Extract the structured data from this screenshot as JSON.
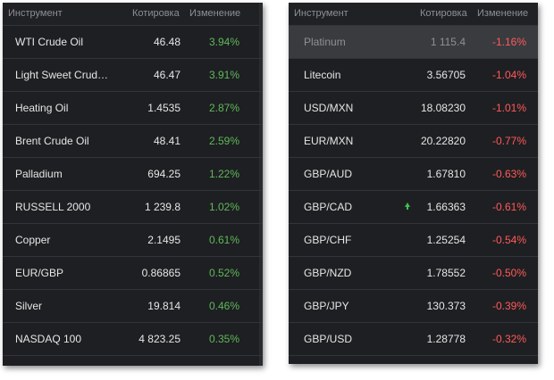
{
  "left_panel": {
    "header": {
      "instrument": "Инструмент",
      "quote": "Котировка",
      "change": "Изменение"
    },
    "rows": [
      {
        "name": "WTI Crude Oil",
        "price": "46.48",
        "change": "3.94%"
      },
      {
        "name": "Light Sweet Crud…",
        "price": "46.47",
        "change": "3.91%"
      },
      {
        "name": "Heating Oil",
        "price": "1.4535",
        "change": "2.87%"
      },
      {
        "name": "Brent Crude Oil",
        "price": "48.41",
        "change": "2.59%"
      },
      {
        "name": "Palladium",
        "price": "694.25",
        "change": "1.22%"
      },
      {
        "name": "RUSSELL 2000",
        "price": "1 239.8",
        "change": "1.02%"
      },
      {
        "name": "Copper",
        "price": "2.1495",
        "change": "0.61%"
      },
      {
        "name": "EUR/GBP",
        "price": "0.86865",
        "change": "0.52%"
      },
      {
        "name": "Silver",
        "price": "19.814",
        "change": "0.46%"
      },
      {
        "name": "NASDAQ 100",
        "price": "4 823.25",
        "change": "0.35%"
      }
    ]
  },
  "right_panel": {
    "header": {
      "instrument": "Инструмент",
      "quote": "Котировка",
      "change": "Изменение"
    },
    "rows": [
      {
        "name": "Platinum",
        "price": "1 115.4",
        "change": "-1.16%"
      },
      {
        "name": "Litecoin",
        "price": "3.56705",
        "change": "-1.04%"
      },
      {
        "name": "USD/MXN",
        "price": "18.08230",
        "change": "-1.01%"
      },
      {
        "name": "EUR/MXN",
        "price": "20.22820",
        "change": "-0.77%"
      },
      {
        "name": "GBP/AUD",
        "price": "1.67810",
        "change": "-0.63%"
      },
      {
        "name": "GBP/CAD",
        "price": "1.66363",
        "change": "-0.61%"
      },
      {
        "name": "GBP/CHF",
        "price": "1.25254",
        "change": "-0.54%"
      },
      {
        "name": "GBP/NZD",
        "price": "1.78552",
        "change": "-0.50%"
      },
      {
        "name": "GBP/JPY",
        "price": "130.373",
        "change": "-0.39%"
      },
      {
        "name": "GBP/USD",
        "price": "1.28778",
        "change": "-0.32%"
      }
    ]
  },
  "colors": {
    "panel_bg": "#1e1f22",
    "positive": "#5fb85b",
    "negative": "#ff5a5a",
    "tick_up": "#3cc04f"
  },
  "icons": {
    "tick_indicator": "up-arrow-icon"
  }
}
